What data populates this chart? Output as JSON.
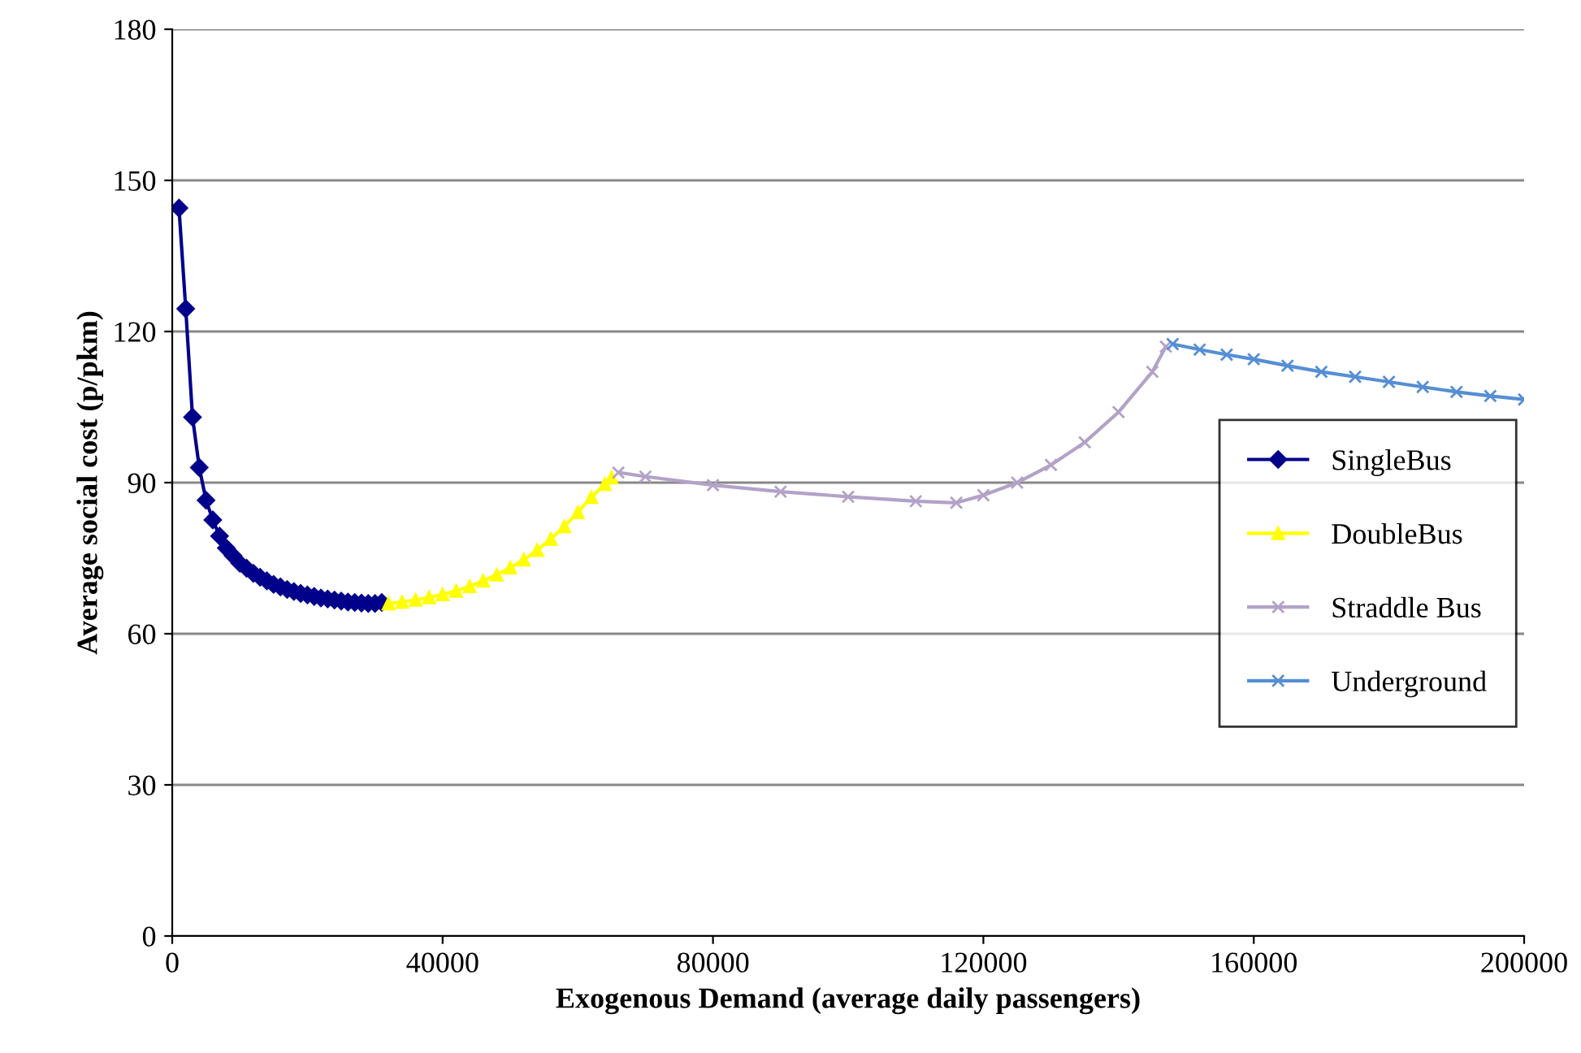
{
  "chart_data": {
    "type": "line",
    "xlabel": "Exogenous Demand (average daily passengers)",
    "ylabel": "Average social cost (p/pkm)",
    "xlim": [
      0,
      200000
    ],
    "xticks": [
      0,
      40000,
      80000,
      120000,
      160000,
      200000
    ],
    "ylim": [
      0,
      180
    ],
    "yticks": [
      0,
      30,
      60,
      90,
      120,
      150,
      180
    ],
    "grid": "y",
    "legend": "right",
    "series": [
      {
        "name": "SingleBus",
        "color": "#00008b",
        "marker": "diamond",
        "x": [
          1000,
          2000,
          3000,
          4000,
          5000,
          6000,
          7000,
          8000,
          9000,
          10000,
          11000,
          12000,
          13000,
          14000,
          15000,
          16000,
          17000,
          18000,
          19000,
          20000,
          21000,
          22000,
          23000,
          24000,
          25000,
          26000,
          27000,
          28000,
          29000,
          30000,
          31000
        ],
        "values": [
          144.5,
          124.5,
          103,
          93,
          86.5,
          82.6,
          79.4,
          77,
          75.5,
          74,
          73,
          72,
          71.2,
          70.5,
          69.8,
          69.3,
          68.8,
          68.4,
          68,
          67.7,
          67.4,
          67.1,
          66.9,
          66.7,
          66.5,
          66.3,
          66.2,
          66.1,
          66,
          66,
          66.2
        ]
      },
      {
        "name": "DoubleBus",
        "color": "#ffff00",
        "marker": "triangle",
        "x": [
          32000,
          34000,
          36000,
          38000,
          40000,
          42000,
          44000,
          46000,
          48000,
          50000,
          52000,
          54000,
          56000,
          58000,
          60000,
          62000,
          64000,
          65000
        ],
        "values": [
          66,
          66.3,
          66.7,
          67.2,
          67.8,
          68.5,
          69.4,
          70.5,
          71.7,
          73.1,
          74.7,
          76.6,
          78.8,
          81.3,
          84.1,
          87.1,
          89.7,
          91
        ]
      },
      {
        "name": "Straddle Bus",
        "color": "#b3a2c7",
        "marker": "cross",
        "x": [
          66000,
          70000,
          80000,
          90000,
          100000,
          110000,
          116000,
          120000,
          125000,
          130000,
          135000,
          140000,
          145000,
          147000
        ],
        "values": [
          92,
          91.2,
          89.5,
          88.2,
          87.2,
          86.3,
          86,
          87.5,
          90,
          93.5,
          98,
          104,
          112,
          117
        ]
      },
      {
        "name": "Underground",
        "color": "#558ed5",
        "marker": "cross",
        "x": [
          148000,
          152000,
          156000,
          160000,
          165000,
          170000,
          175000,
          180000,
          185000,
          190000,
          195000,
          200000
        ],
        "values": [
          117.5,
          116.4,
          115.4,
          114.5,
          113.2,
          112,
          111,
          110,
          109,
          108,
          107.2,
          106.5
        ]
      }
    ]
  }
}
